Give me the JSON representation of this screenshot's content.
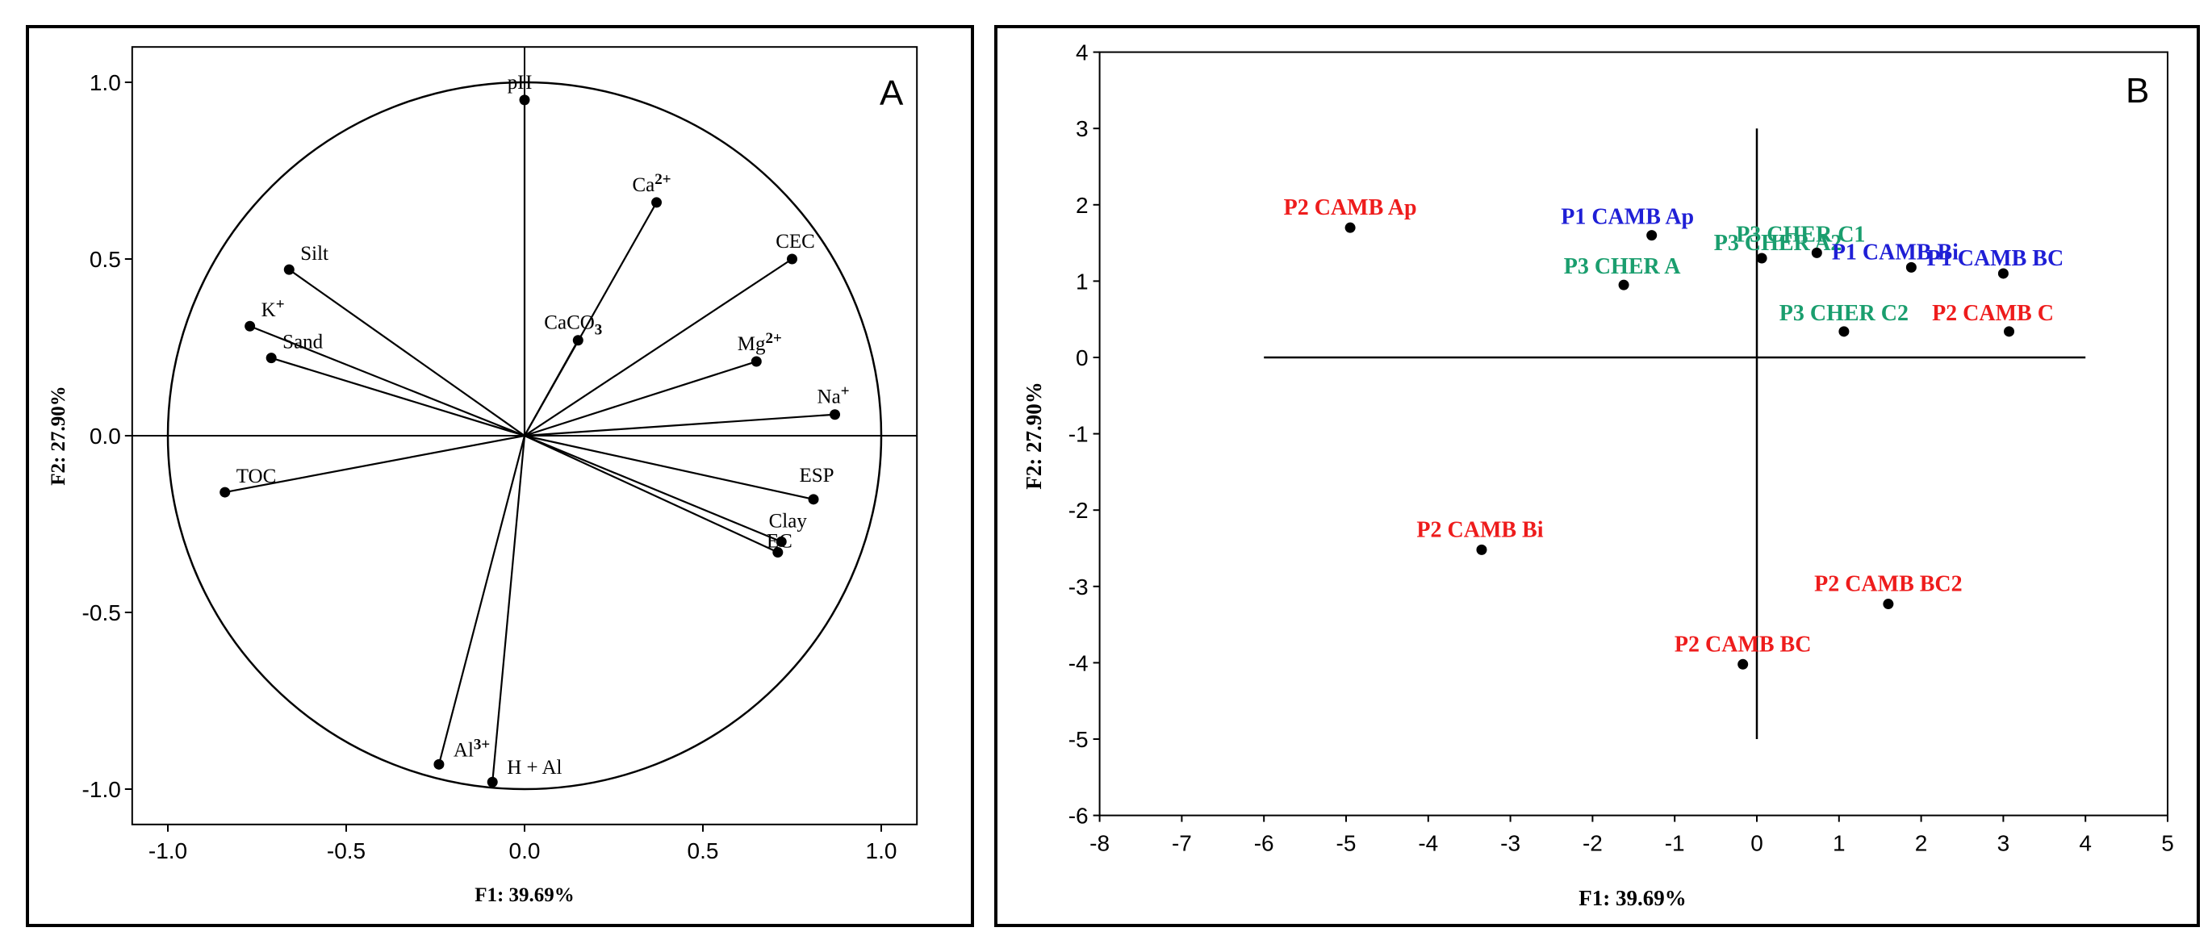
{
  "chart_data": [
    {
      "type": "scatter",
      "panel_label": "A",
      "xlabel": "F1:  39.69%",
      "ylabel": "F2:  27.90%",
      "xlim": [
        -1.1,
        1.1
      ],
      "ylim": [
        -1.1,
        1.1
      ],
      "x_ticks": [
        -1.0,
        -0.5,
        0.0,
        0.5,
        1.0
      ],
      "x_tick_labels": [
        "-1.0",
        "-0.5",
        "0.0",
        "0.5",
        "1.0"
      ],
      "y_ticks": [
        1.0,
        0.5,
        0.0,
        -0.5,
        -1.0
      ],
      "y_tick_labels": [
        "1.0",
        "0.5",
        "0.0",
        "-0.5",
        "-1.0"
      ],
      "unit_circle": true,
      "points": [
        {
          "label": "pH",
          "sup": "",
          "x": 0.0,
          "y": 0.95
        },
        {
          "label": "Ca",
          "sup": "2+",
          "x": 0.37,
          "y": 0.66
        },
        {
          "label": "CEC",
          "sup": "",
          "x": 0.75,
          "y": 0.5
        },
        {
          "label": "Silt",
          "sup": "",
          "x": -0.66,
          "y": 0.47
        },
        {
          "label": "K",
          "sup": "+",
          "x": -0.77,
          "y": 0.31
        },
        {
          "label": "Sand",
          "sup": "",
          "x": -0.71,
          "y": 0.22
        },
        {
          "label": "CaCO",
          "sub": "3",
          "x": 0.15,
          "y": 0.27
        },
        {
          "label": "Mg",
          "sup": "2+",
          "x": 0.65,
          "y": 0.21
        },
        {
          "label": "Na",
          "sup": "+",
          "x": 0.87,
          "y": 0.06
        },
        {
          "label": "TOC",
          "sup": "",
          "x": -0.84,
          "y": -0.16
        },
        {
          "label": "ESP",
          "sup": "",
          "x": 0.81,
          "y": -0.18
        },
        {
          "label": "Clay",
          "sup": "",
          "x": 0.72,
          "y": -0.3
        },
        {
          "label": "EC",
          "sup": "",
          "x": 0.71,
          "y": -0.33
        },
        {
          "label": "Al",
          "sup": "3+",
          "x": -0.24,
          "y": -0.93
        },
        {
          "label": "H + Al",
          "sup": "",
          "x": -0.09,
          "y": -0.98
        }
      ]
    },
    {
      "type": "scatter",
      "panel_label": "B",
      "xlabel": "F1:  39.69%",
      "ylabel": "F2:  27.90%",
      "xlim": [
        -8,
        5
      ],
      "ylim": [
        -6,
        4
      ],
      "x_ticks": [
        -8,
        -7,
        -6,
        -5,
        -4,
        -3,
        -2,
        -1,
        0,
        1,
        2,
        3,
        4,
        5
      ],
      "x_tick_labels": [
        "-8",
        "-7",
        "-6",
        "-5",
        "-4",
        "-3",
        "-2",
        "-1",
        "0",
        "1",
        "2",
        "3",
        "4",
        "5"
      ],
      "y_ticks": [
        4,
        3,
        2,
        1,
        0,
        -1,
        -2,
        -3,
        -4,
        -5,
        -6
      ],
      "y_tick_labels": [
        "4",
        "3",
        "2",
        "1",
        "0",
        "-1",
        "-2",
        "-3",
        "-4",
        "-5",
        "-6"
      ],
      "axis_lines": {
        "h_from": -6,
        "h_to": 4,
        "v_from": -5,
        "v_to": 3
      },
      "colors": {
        "P1": "#1f1fd6",
        "P2": "#ee1c1c",
        "P3": "#1a9e6e"
      },
      "points": [
        {
          "label": "P2 CAMB Ap",
          "group": "P2",
          "x": -4.95,
          "y": 1.7
        },
        {
          "label": "P1 CAMB Ap",
          "group": "P1",
          "x": -1.28,
          "y": 1.6
        },
        {
          "label": "P3 CHER A2",
          "group": "P3",
          "x": 0.06,
          "y": 1.3
        },
        {
          "label": "P3 CHER C1",
          "group": "P3",
          "x": 0.73,
          "y": 1.37
        },
        {
          "label": "P1 CAMB Bi",
          "group": "P1",
          "x": 1.88,
          "y": 1.18
        },
        {
          "label": "P1 CAMB BC",
          "group": "P1",
          "x": 3.0,
          "y": 1.1
        },
        {
          "label": "P3 CHER A",
          "group": "P3",
          "x": -1.62,
          "y": 0.95
        },
        {
          "label": "P3 CHER C2",
          "group": "P3",
          "x": 1.06,
          "y": 0.34
        },
        {
          "label": "P2 CAMB C",
          "group": "P2",
          "x": 3.07,
          "y": 0.34
        },
        {
          "label": "P2 CAMB Bi",
          "group": "P2",
          "x": -3.35,
          "y": -2.52
        },
        {
          "label": "P2 CAMB BC2",
          "group": "P2",
          "x": 1.6,
          "y": -3.23
        },
        {
          "label": "P2 CAMB BC",
          "group": "P2",
          "x": -0.17,
          "y": -4.02
        }
      ]
    }
  ]
}
